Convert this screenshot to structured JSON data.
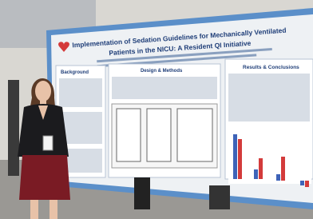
{
  "poster": {
    "title_lines": [
      "Implementation of Sedation Guidelines for Mechanically Ventilated",
      "Patients in the NICU: A Resident QI Initiative"
    ],
    "sections": [
      "Background",
      "Design & Methods",
      "Results & Conclusions"
    ]
  }
}
